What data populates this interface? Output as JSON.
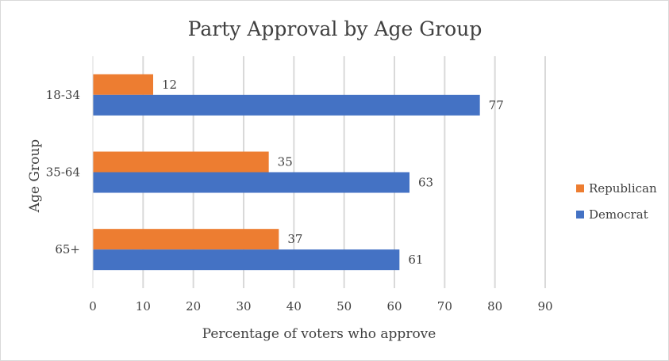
{
  "chart_data": {
    "type": "bar",
    "orientation": "horizontal",
    "title": "Party Approval by Age Group",
    "xlabel": "Percentage of voters who approve",
    "ylabel": "Age Group",
    "categories": [
      "18-34",
      "35-64",
      "65+"
    ],
    "series": [
      {
        "name": "Republican",
        "color": "#ED7D31",
        "values": [
          12,
          35,
          37
        ]
      },
      {
        "name": "Democrat",
        "color": "#4472C4",
        "values": [
          77,
          63,
          61
        ]
      }
    ],
    "xlim": [
      0,
      90
    ],
    "xticks": [
      "0",
      "10",
      "20",
      "30",
      "40",
      "50",
      "60",
      "70",
      "80",
      "90"
    ],
    "grid": true,
    "legend_position": "right",
    "data_labels": true
  }
}
